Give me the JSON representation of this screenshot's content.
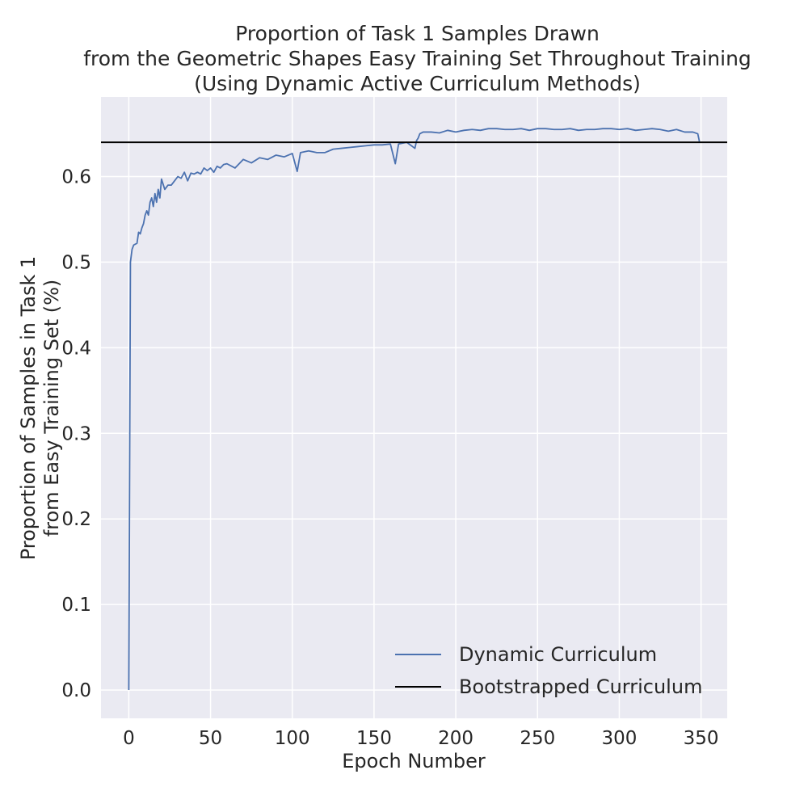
{
  "chart_data": {
    "type": "line",
    "title_lines": [
      "Proportion of Task 1 Samples Drawn",
      "from the Geometric Shapes Easy Training Set Throughout Training",
      "(Using Dynamic Active Curriculum Methods)"
    ],
    "xlabel": "Epoch Number",
    "ylabel_lines": [
      "Proportion of Samples in Task 1",
      "from Easy Training Set (%)"
    ],
    "xlim": [
      -17,
      366
    ],
    "ylim": [
      -0.033,
      0.693
    ],
    "xticks": [
      0,
      50,
      100,
      150,
      200,
      250,
      300,
      350
    ],
    "yticks": [
      0.0,
      0.1,
      0.2,
      0.3,
      0.4,
      0.5,
      0.6
    ],
    "ytick_labels": [
      "0.0",
      "0.1",
      "0.2",
      "0.3",
      "0.4",
      "0.5",
      "0.6"
    ],
    "grid": true,
    "legend_position": "lower-right",
    "series": [
      {
        "name": "Dynamic Curriculum",
        "color": "#4c72b0",
        "x": [
          0,
          1,
          2,
          3,
          4,
          5,
          6,
          7,
          8,
          9,
          10,
          11,
          12,
          13,
          14,
          15,
          16,
          17,
          18,
          19,
          20,
          22,
          24,
          26,
          28,
          30,
          32,
          34,
          36,
          38,
          40,
          42,
          44,
          46,
          48,
          50,
          52,
          54,
          56,
          58,
          60,
          65,
          70,
          75,
          80,
          85,
          90,
          95,
          100,
          103,
          105,
          110,
          115,
          120,
          125,
          130,
          135,
          140,
          145,
          150,
          155,
          160,
          163,
          165,
          170,
          175,
          176,
          177,
          178,
          180,
          185,
          190,
          195,
          200,
          205,
          210,
          215,
          220,
          225,
          230,
          235,
          240,
          245,
          250,
          255,
          260,
          265,
          270,
          275,
          280,
          285,
          290,
          295,
          300,
          305,
          310,
          315,
          320,
          325,
          330,
          335,
          340,
          345,
          348,
          349
        ],
        "values": [
          0.0,
          0.5,
          0.515,
          0.52,
          0.521,
          0.522,
          0.535,
          0.533,
          0.54,
          0.545,
          0.555,
          0.56,
          0.555,
          0.57,
          0.575,
          0.565,
          0.58,
          0.57,
          0.585,
          0.575,
          0.597,
          0.585,
          0.59,
          0.59,
          0.595,
          0.6,
          0.598,
          0.605,
          0.595,
          0.604,
          0.603,
          0.605,
          0.603,
          0.61,
          0.607,
          0.61,
          0.605,
          0.612,
          0.61,
          0.614,
          0.615,
          0.61,
          0.62,
          0.616,
          0.622,
          0.62,
          0.625,
          0.623,
          0.627,
          0.606,
          0.628,
          0.63,
          0.628,
          0.628,
          0.632,
          0.633,
          0.634,
          0.635,
          0.636,
          0.637,
          0.637,
          0.638,
          0.615,
          0.638,
          0.64,
          0.633,
          0.642,
          0.645,
          0.65,
          0.652,
          0.652,
          0.651,
          0.654,
          0.652,
          0.654,
          0.655,
          0.654,
          0.656,
          0.656,
          0.655,
          0.655,
          0.656,
          0.654,
          0.656,
          0.656,
          0.655,
          0.655,
          0.656,
          0.654,
          0.655,
          0.655,
          0.656,
          0.656,
          0.655,
          0.656,
          0.654,
          0.655,
          0.656,
          0.655,
          0.653,
          0.655,
          0.652,
          0.652,
          0.65,
          0.641
        ]
      },
      {
        "name": "Bootstrapped Curriculum",
        "color": "#000000",
        "constant": 0.64
      }
    ]
  }
}
